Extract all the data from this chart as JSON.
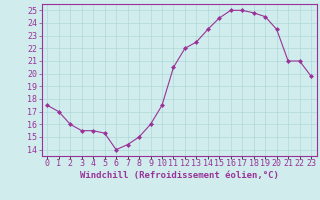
{
  "x": [
    0,
    1,
    2,
    3,
    4,
    5,
    6,
    7,
    8,
    9,
    10,
    11,
    12,
    13,
    14,
    15,
    16,
    17,
    18,
    19,
    20,
    21,
    22,
    23
  ],
  "y": [
    17.5,
    17.0,
    16.0,
    15.5,
    15.5,
    15.3,
    14.0,
    14.4,
    15.0,
    16.0,
    17.5,
    20.5,
    22.0,
    22.5,
    23.5,
    24.4,
    25.0,
    25.0,
    24.8,
    24.5,
    23.5,
    21.0,
    21.0,
    19.8
  ],
  "line_color": "#993399",
  "marker": "D",
  "marker_size": 2.0,
  "bg_color": "#d0ecec",
  "grid_color": "#b0d8d8",
  "xlabel": "Windchill (Refroidissement éolien,°C)",
  "xlabel_color": "#993399",
  "xlabel_fontsize": 6.5,
  "tick_color": "#993399",
  "tick_fontsize": 6.0,
  "ylim": [
    13.5,
    25.5
  ],
  "yticks": [
    14,
    15,
    16,
    17,
    18,
    19,
    20,
    21,
    22,
    23,
    24,
    25
  ],
  "xtick_labels": [
    "0",
    "1",
    "2",
    "3",
    "4",
    "5",
    "6",
    "7",
    "8",
    "9",
    "10",
    "11",
    "12",
    "13",
    "14",
    "15",
    "16",
    "17",
    "18",
    "19",
    "20",
    "21",
    "22",
    "23"
  ],
  "spine_color": "#993399",
  "spine_bottom_color": "#660066",
  "linewidth": 0.8
}
